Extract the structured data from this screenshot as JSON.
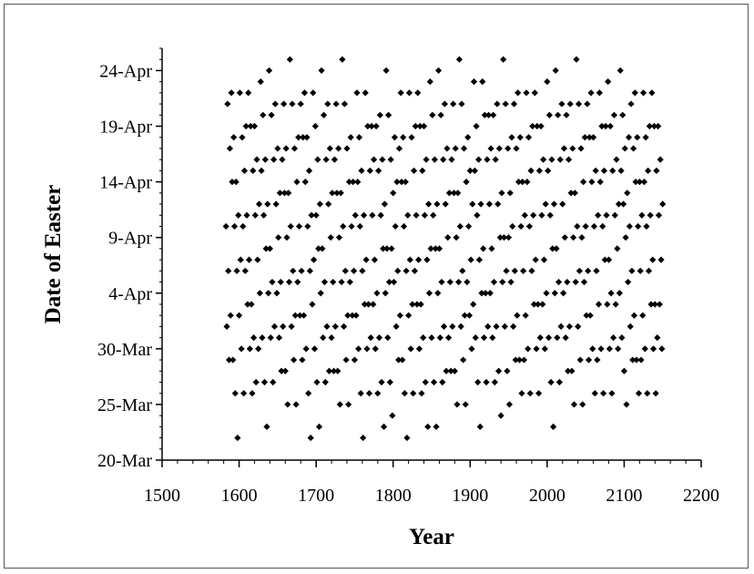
{
  "chart_data": {
    "type": "scatter",
    "title": "",
    "xlabel": "Year",
    "ylabel": "Date of Easter",
    "xlim": [
      1500,
      2200
    ],
    "ylim": [
      "20-Mar",
      "26-Apr"
    ],
    "x_ticks": [
      "1500",
      "1600",
      "1700",
      "1800",
      "1900",
      "2000",
      "2100",
      "2200"
    ],
    "y_ticks": [
      "20-Mar",
      "25-Mar",
      "30-Mar",
      "4-Apr",
      "9-Apr",
      "14-Apr",
      "19-Apr",
      "24-Apr"
    ],
    "grid": false,
    "legend": "none",
    "marker": "diamond",
    "marker_color": "#000000",
    "year_range": [
      1583,
      2150
    ],
    "data_rule": "One point per year: Gregorian (Western) Easter Sunday date, Computus rule"
  }
}
